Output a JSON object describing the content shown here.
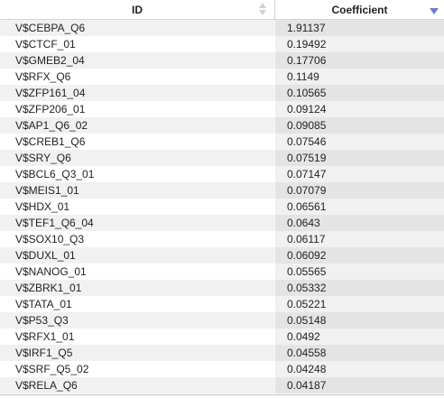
{
  "table": {
    "columns": [
      {
        "key": "id",
        "label": "ID",
        "sort": "none"
      },
      {
        "key": "coef",
        "label": "Coefficient",
        "sort": "descending"
      }
    ],
    "sort_indicator_color": "#6a7fc8",
    "rows": [
      {
        "id": "V$CEBPA_Q6",
        "coef": "1.91137"
      },
      {
        "id": "V$CTCF_01",
        "coef": "0.19492"
      },
      {
        "id": "V$GMEB2_04",
        "coef": "0.17706"
      },
      {
        "id": "V$RFX_Q6",
        "coef": "0.1149"
      },
      {
        "id": "V$ZFP161_04",
        "coef": "0.10565"
      },
      {
        "id": "V$ZFP206_01",
        "coef": "0.09124"
      },
      {
        "id": "V$AP1_Q6_02",
        "coef": "0.09085"
      },
      {
        "id": "V$CREB1_Q6",
        "coef": "0.07546"
      },
      {
        "id": "V$SRY_Q6",
        "coef": "0.07519"
      },
      {
        "id": "V$BCL6_Q3_01",
        "coef": "0.07147"
      },
      {
        "id": "V$MEIS1_01",
        "coef": "0.07079"
      },
      {
        "id": "V$HDX_01",
        "coef": "0.06561"
      },
      {
        "id": "V$TEF1_Q6_04",
        "coef": "0.0643"
      },
      {
        "id": "V$SOX10_Q3",
        "coef": "0.06117"
      },
      {
        "id": "V$DUXL_01",
        "coef": "0.06092"
      },
      {
        "id": "V$NANOG_01",
        "coef": "0.05565"
      },
      {
        "id": "V$ZBRK1_01",
        "coef": "0.05332"
      },
      {
        "id": "V$TATA_01",
        "coef": "0.05221"
      },
      {
        "id": "V$P53_Q3",
        "coef": "0.05148"
      },
      {
        "id": "V$RFX1_01",
        "coef": "0.0492"
      },
      {
        "id": "V$IRF1_Q5",
        "coef": "0.04558"
      },
      {
        "id": "V$SRF_Q5_02",
        "coef": "0.04248"
      },
      {
        "id": "V$RELA_Q6",
        "coef": "0.04187"
      }
    ]
  }
}
